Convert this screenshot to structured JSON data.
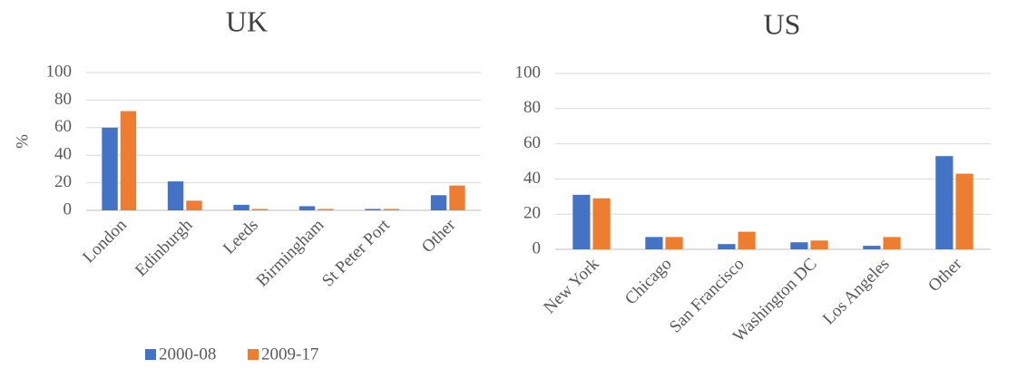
{
  "chart_data": [
    {
      "type": "bar",
      "title": "UK",
      "y_label": "%",
      "categories": [
        "London",
        "Edinburgh",
        "Leeds",
        "Birmingham",
        "St Peter Port",
        "Other"
      ],
      "series": [
        {
          "name": "2000-08",
          "color": "#4472c4",
          "values": [
            60,
            21,
            4,
            3,
            1,
            11
          ]
        },
        {
          "name": "2009-17",
          "color": "#ed7d31",
          "values": [
            72,
            7,
            1,
            1,
            1,
            18
          ]
        }
      ],
      "ylim": [
        0,
        100
      ],
      "yticks": [
        0,
        20,
        40,
        60,
        80,
        100
      ],
      "grid": true,
      "legend": "bottom"
    },
    {
      "type": "bar",
      "title": "US",
      "categories": [
        "New York",
        "Chicago",
        "San Francisco",
        "Washington DC",
        "Los Angeles",
        "Other"
      ],
      "series": [
        {
          "color": "#4472c4",
          "values": [
            31,
            7,
            3,
            4,
            2,
            53
          ]
        },
        {
          "color": "#ed7d31",
          "values": [
            29,
            7,
            10,
            5,
            7,
            43
          ]
        }
      ],
      "ylim": [
        0,
        100
      ],
      "yticks": [
        0,
        20,
        40,
        60,
        80,
        100
      ],
      "grid": true
    }
  ]
}
